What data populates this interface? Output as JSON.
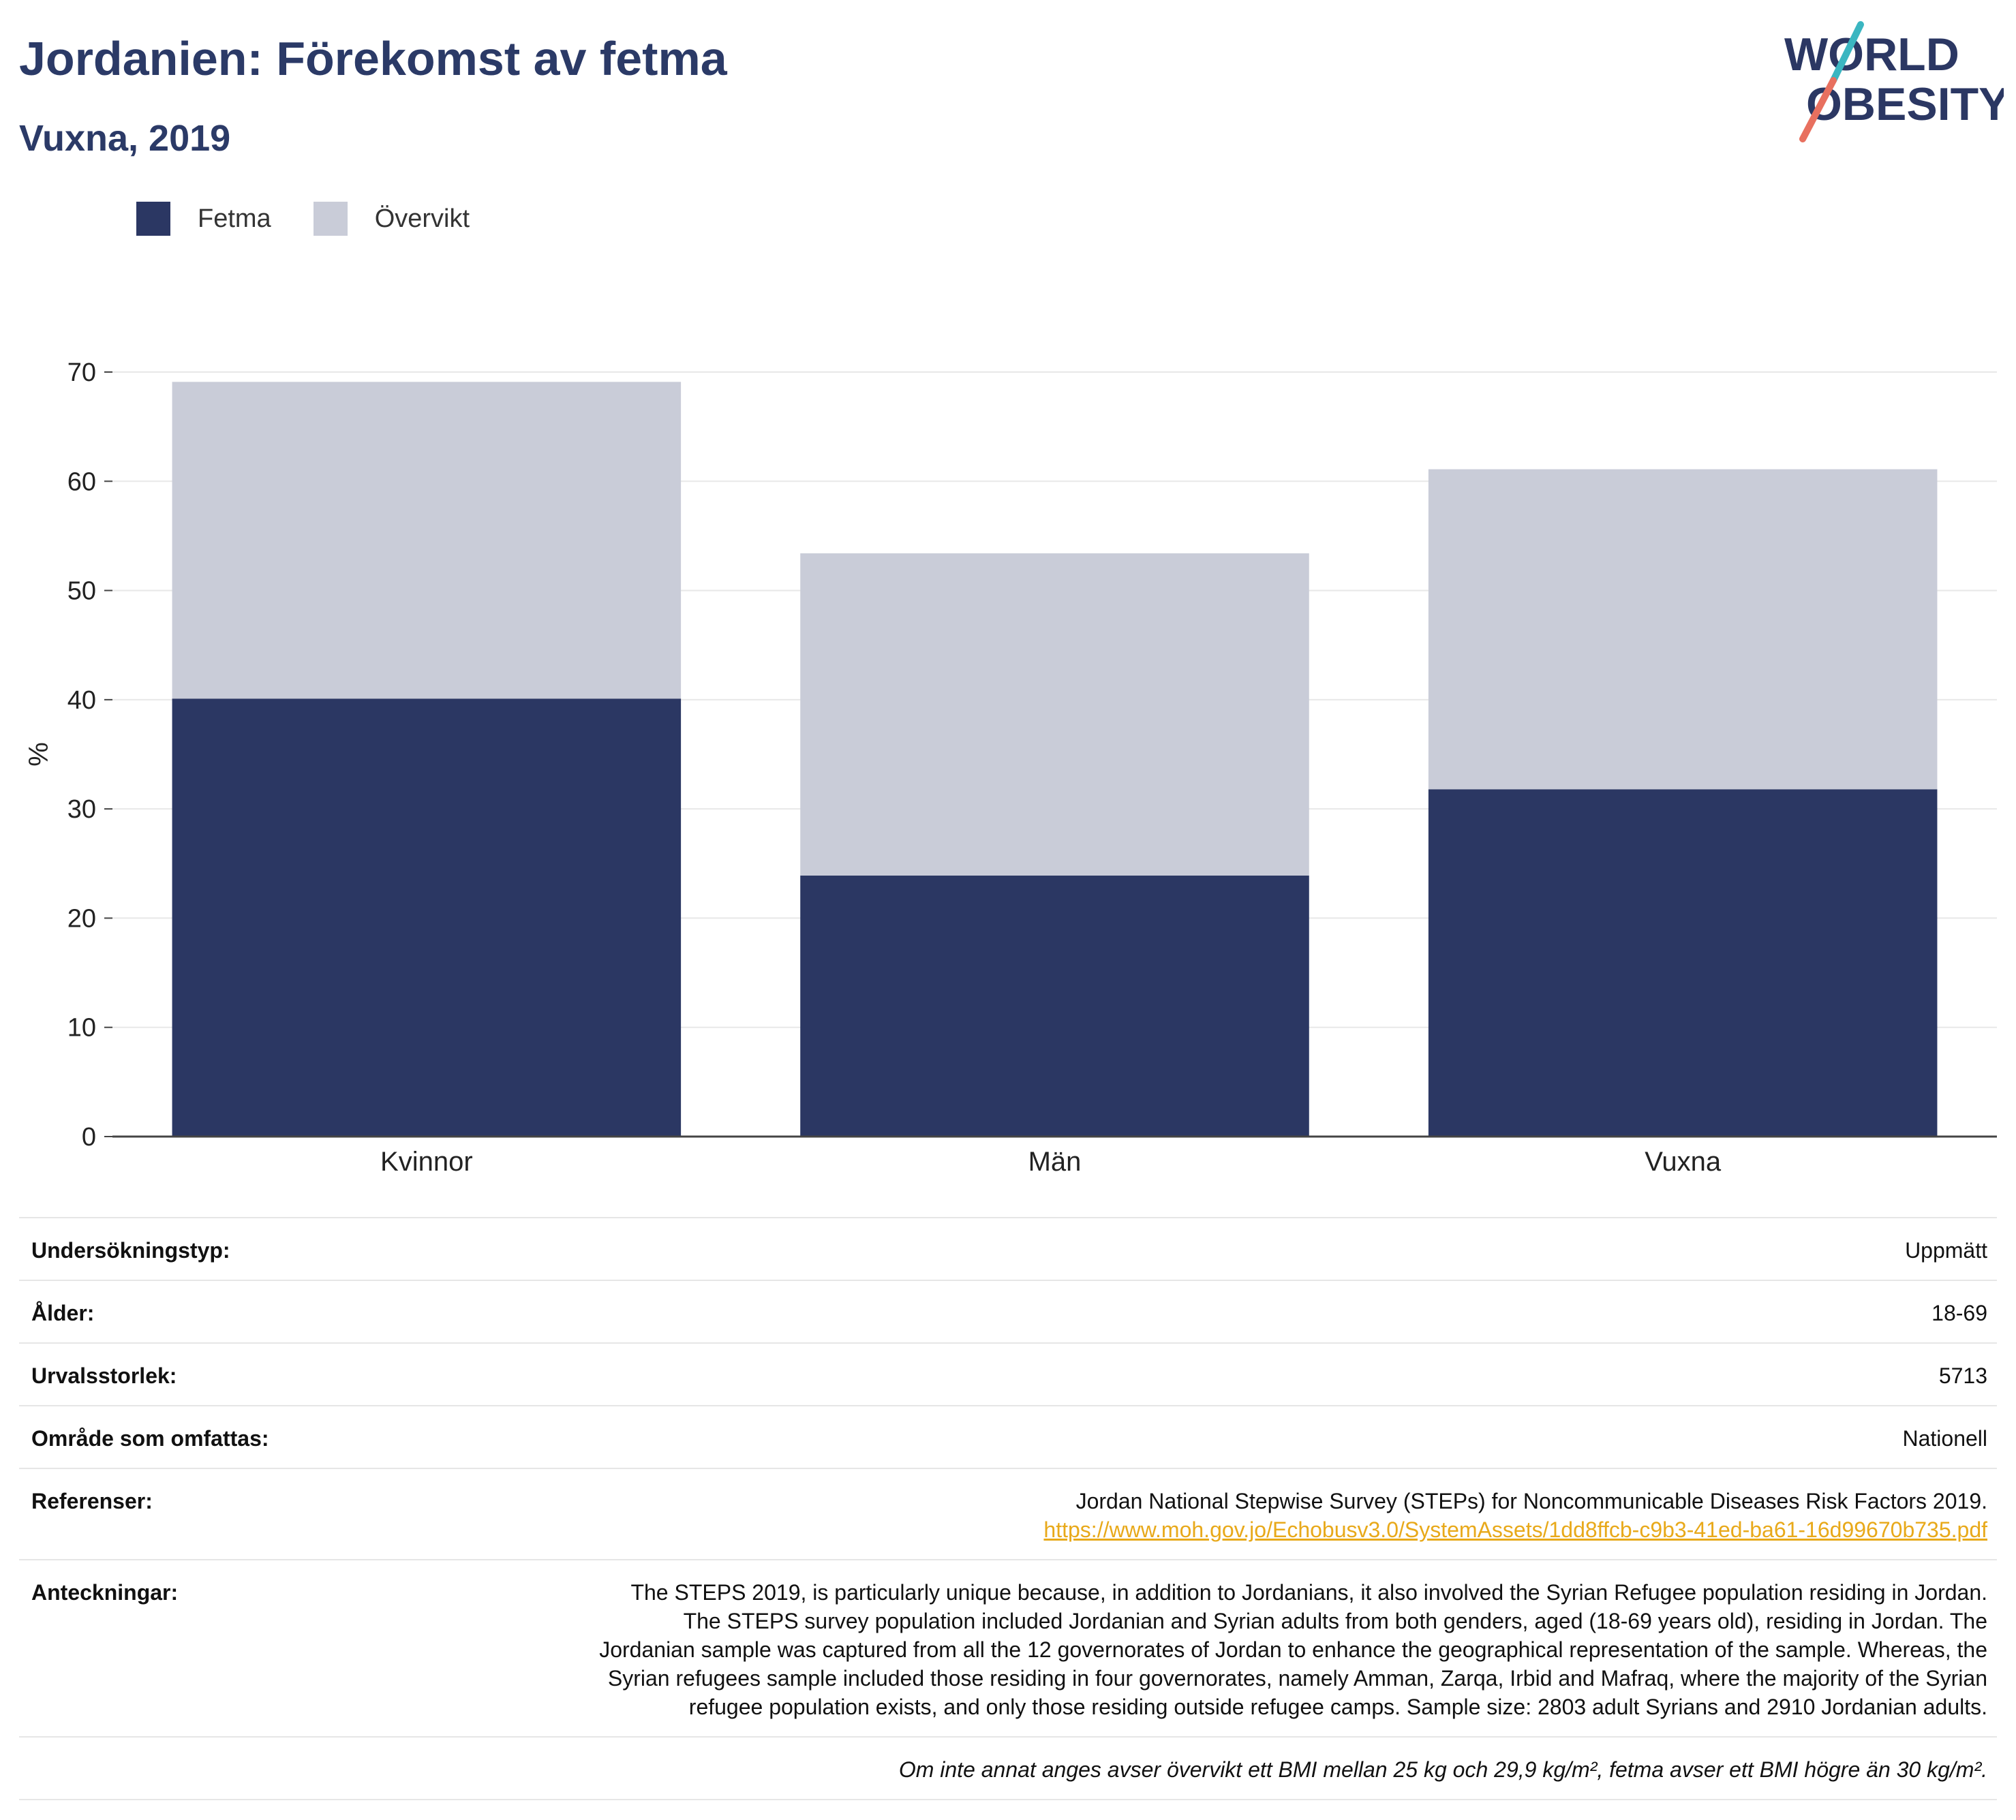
{
  "header": {
    "title": "Jordanien: Förekomst av fetma",
    "subtitle": "Vuxna, 2019",
    "logo_line1": "WORLD",
    "logo_line2": "OBESITY"
  },
  "legend": [
    {
      "label": "Fetma",
      "color": "#2b3763"
    },
    {
      "label": "Övervikt",
      "color": "#c9ccd8"
    }
  ],
  "chart_data": {
    "type": "bar",
    "stacked": true,
    "categories": [
      "Kvinnor",
      "Män",
      "Vuxna"
    ],
    "series": [
      {
        "name": "Fetma",
        "color": "#2b3763",
        "values": [
          40.1,
          23.9,
          31.8
        ]
      },
      {
        "name": "Övervikt",
        "color": "#c9ccd8",
        "values": [
          29.0,
          29.5,
          29.3
        ]
      }
    ],
    "ylabel": "%",
    "ylim": [
      0,
      70
    ],
    "yticks": [
      0,
      10,
      20,
      30,
      40,
      50,
      60,
      70
    ],
    "grid": true,
    "legend_position": "top-left"
  },
  "meta": {
    "survey_type": {
      "label": "Undersökningstyp:",
      "value": "Uppmätt"
    },
    "age": {
      "label": "Ålder:",
      "value": "18-69"
    },
    "sample_size": {
      "label": "Urvalsstorlek:",
      "value": "5713"
    },
    "area": {
      "label": "Område som omfattas:",
      "value": "Nationell"
    },
    "references": {
      "label": "Referenser:",
      "value": "Jordan National Stepwise Survey (STEPs) for Noncommunicable Diseases Risk Factors 2019.",
      "link": "https://www.moh.gov.jo/Echobusv3.0/SystemAssets/1dd8ffcb-c9b3-41ed-ba61-16d99670b735.pdf"
    },
    "notes": {
      "label": "Anteckningar:",
      "value": "The STEPS 2019, is particularly unique because, in addition to Jordanians, it also involved the Syrian Refugee population residing in Jordan. The STEPS survey population included Jordanian and Syrian adults from both genders, aged (18-69 years old), residing in Jordan. The Jordanian sample was captured from all the 12 governorates of Jordan to enhance the geographical representation of the sample. Whereas, the Syrian refugees sample included those residing in four governorates, namely Amman, Zarqa, Irbid and Mafraq, where the majority of the Syrian refugee population exists, and only those residing outside refugee camps. Sample size: 2803 adult Syrians and 2910 Jordanian adults."
    },
    "footnote": "Om inte annat anges avser övervikt ett BMI mellan 25 kg och 29,9 kg/m², fetma avser ett BMI högre än 30 kg/m²."
  }
}
